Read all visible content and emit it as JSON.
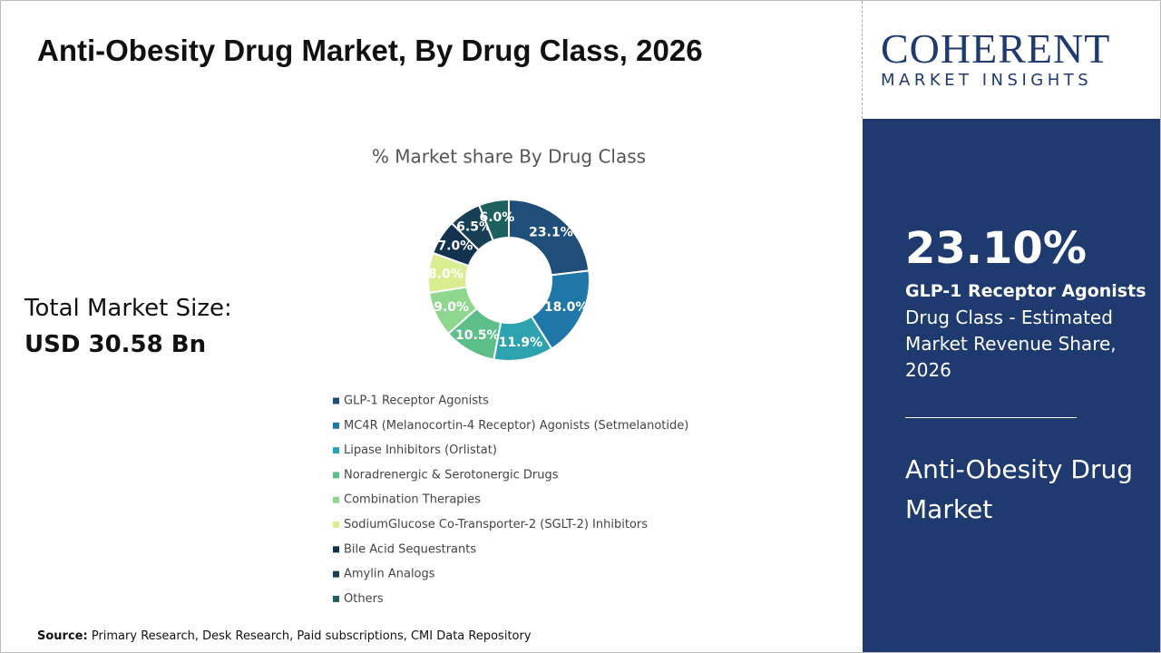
{
  "header": {
    "title": "Anti-Obesity Drug Market, By Drug Class, 2026"
  },
  "summary": {
    "label": "Total Market Size:",
    "value": "USD 30.58 Bn"
  },
  "chart_data": {
    "type": "donut",
    "title": "% Market share By Drug Class",
    "categories": [
      "GLP-1 Receptor Agonists",
      "MC4R (Melanocortin-4 Receptor) Agonists (Setmelanotide)",
      "Lipase Inhibitors (Orlistat)",
      "Noradrenergic & Serotonergic Drugs",
      "Combination Therapies",
      "SodiumGlucose Co-Transporter-2 (SGLT-2) Inhibitors",
      "Bile Acid Sequestrants",
      "Amylin Analogs",
      "Others"
    ],
    "values": [
      23.1,
      18.0,
      11.9,
      10.5,
      9.0,
      8.0,
      7.0,
      6.5,
      6.0
    ],
    "value_labels": [
      "23.1%",
      "18.0%",
      "11.9%",
      "10.5%",
      "9.0%",
      "8.0%",
      "7.0%",
      "6.5%",
      "6.0%"
    ],
    "colors": [
      "#1f4e79",
      "#1f77a8",
      "#2ea3b0",
      "#5cbf8a",
      "#8fd68f",
      "#d8ee90",
      "#13324f",
      "#173f55",
      "#1d6060"
    ]
  },
  "source": {
    "label": "Source:",
    "text": "Primary Research, Desk Research, Paid subscriptions, CMI Data Repository"
  },
  "sidebar": {
    "logo_name": "COHERENT",
    "logo_tagline": "MARKET INSIGHTS",
    "highlight_value": "23.10%",
    "highlight_segment": "GLP-1 Receptor Agonists",
    "highlight_description": "Drug Class - Estimated Market Revenue Share, 2026",
    "market_name": "Anti-Obesity Drug Market"
  }
}
